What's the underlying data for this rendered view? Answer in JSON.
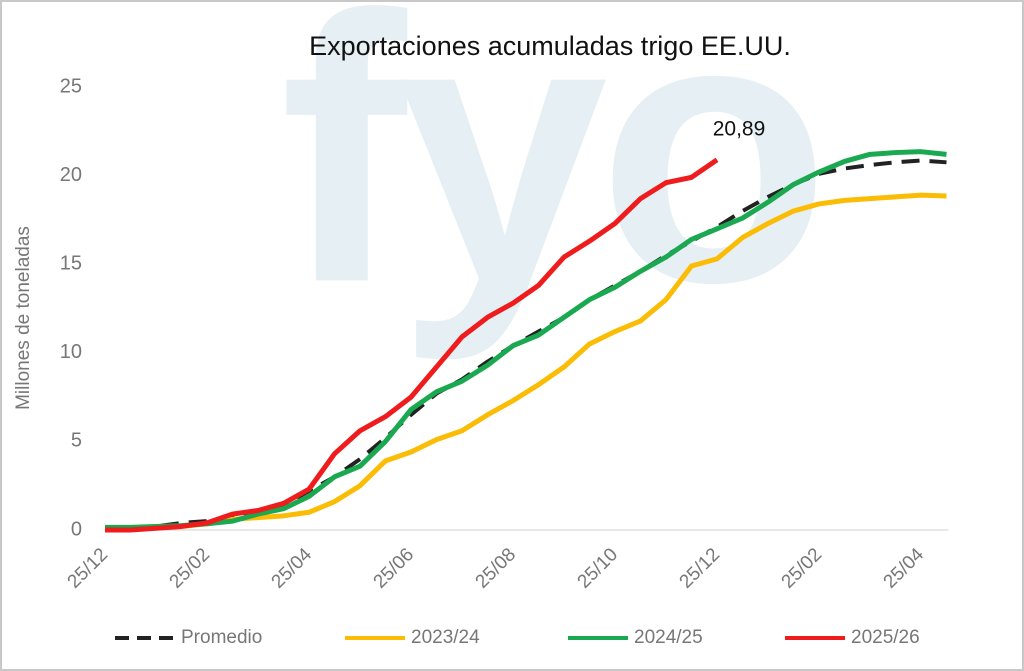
{
  "chart_data": {
    "type": "line",
    "title": "Exportaciones acumuladas trigo EE.UU.",
    "y_label": "Millones de toneladas",
    "watermark": "fyo",
    "categories": [
      "25/12",
      null,
      null,
      null,
      "25/02",
      null,
      null,
      null,
      "25/04",
      null,
      null,
      null,
      "25/06",
      null,
      null,
      null,
      "25/08",
      null,
      null,
      null,
      "25/10",
      null,
      null,
      null,
      "25/12",
      null,
      null,
      null,
      "25/02",
      null,
      null,
      null,
      "25/04",
      null
    ],
    "ylim": [
      0,
      25
    ],
    "yticks": [
      0,
      5,
      10,
      15,
      20,
      25
    ],
    "grid": false,
    "legend": "bottom",
    "series": [
      {
        "name": "Promedio",
        "color": "#222222",
        "dashed": true,
        "values": [
          0.1,
          0.15,
          0.2,
          0.4,
          0.5,
          0.7,
          1.0,
          1.4,
          2.2,
          3.0,
          4.0,
          5.2,
          6.5,
          7.7,
          8.5,
          9.5,
          10.4,
          11.2,
          12.0,
          13.0,
          13.8,
          14.6,
          15.5,
          16.3,
          17.1,
          18.0,
          18.8,
          19.5,
          20.1,
          20.4,
          20.6,
          20.75,
          20.85,
          20.75
        ]
      },
      {
        "name": "2023/24",
        "color": "#fbbc05",
        "values": [
          0.1,
          0.1,
          0.15,
          0.2,
          0.35,
          0.6,
          0.7,
          0.8,
          1.0,
          1.6,
          2.5,
          3.9,
          4.4,
          5.1,
          5.6,
          6.5,
          7.3,
          8.2,
          9.2,
          10.5,
          11.2,
          11.8,
          13.0,
          14.9,
          15.3,
          16.5,
          17.3,
          18.0,
          18.4,
          18.6,
          18.7,
          18.8,
          18.9,
          18.85
        ]
      },
      {
        "name": "2024/25",
        "color": "#1aa851",
        "values": [
          0.15,
          0.15,
          0.2,
          0.25,
          0.35,
          0.5,
          0.9,
          1.2,
          1.9,
          3.0,
          3.6,
          5.0,
          6.8,
          7.8,
          8.4,
          9.3,
          10.4,
          11.0,
          12.0,
          13.0,
          13.7,
          14.6,
          15.4,
          16.4,
          17.0,
          17.6,
          18.5,
          19.5,
          20.2,
          20.8,
          21.2,
          21.3,
          21.35,
          21.2
        ]
      },
      {
        "name": "2025/26",
        "color": "#ee1c1c",
        "values": [
          0.0,
          0.0,
          0.1,
          0.2,
          0.4,
          0.9,
          1.1,
          1.5,
          2.3,
          4.3,
          5.6,
          6.4,
          7.5,
          9.2,
          10.9,
          12.0,
          12.8,
          13.8,
          15.4,
          16.3,
          17.3,
          18.7,
          19.6,
          19.9,
          20.89,
          null,
          null,
          null,
          null,
          null,
          null,
          null,
          null,
          null
        ],
        "value_labels": [
          null,
          null,
          null,
          null,
          null,
          null,
          null,
          null,
          null,
          null,
          null,
          null,
          null,
          null,
          null,
          null,
          null,
          null,
          null,
          null,
          null,
          null,
          null,
          null,
          "20,89",
          null,
          null,
          null,
          null,
          null,
          null,
          null,
          null,
          null
        ]
      }
    ]
  }
}
